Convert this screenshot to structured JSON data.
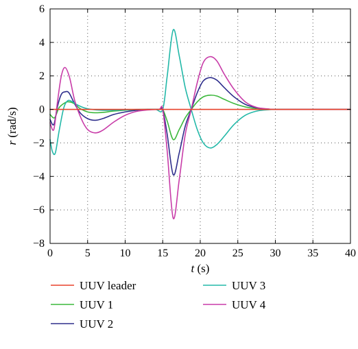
{
  "chart_data": {
    "type": "line",
    "xlabel_var": "t",
    "xlabel_unit": " (s)",
    "ylabel_var": "r",
    "ylabel_unit": " (rad/s)",
    "xlim": [
      0,
      40
    ],
    "ylim": [
      -8,
      6
    ],
    "xticks": [
      0,
      5,
      10,
      15,
      20,
      25,
      30,
      35,
      40
    ],
    "yticks": [
      -8,
      -6,
      -4,
      -2,
      0,
      2,
      4,
      6
    ],
    "xtick_labels": [
      "0",
      "5",
      "10",
      "15",
      "20",
      "25",
      "30",
      "35",
      "40"
    ],
    "ytick_labels": [
      "−8",
      "−6",
      "−4",
      "−2",
      "0",
      "2",
      "4",
      "6"
    ],
    "grid": "dotted",
    "legend_position": "below",
    "series": [
      {
        "name": "UUV leader",
        "color": "#e8412a",
        "x": [
          0,
          40
        ],
        "y": [
          0,
          0
        ]
      },
      {
        "name": "UUV 1",
        "color": "#3cb83c",
        "x": [
          0,
          0.6,
          1.2,
          2.0,
          2.5,
          3.2,
          4.0,
          5.0,
          6.0,
          7.0,
          8.5,
          10.0,
          11.5,
          13.0,
          14.5,
          15.0,
          15.6,
          16.4,
          17.2,
          18.0,
          18.8,
          19.6,
          20.4,
          21.3,
          22.2,
          23.2,
          24.5,
          26.0,
          27.5,
          29.0,
          30.0,
          33.0,
          40.0
        ],
        "y": [
          -0.3,
          -0.5,
          0.1,
          0.4,
          0.45,
          0.35,
          0.05,
          -0.15,
          -0.2,
          -0.18,
          -0.1,
          -0.05,
          -0.02,
          0.0,
          0.0,
          0.0,
          -0.7,
          -1.8,
          -1.2,
          -0.5,
          0.0,
          0.45,
          0.75,
          0.85,
          0.8,
          0.6,
          0.35,
          0.15,
          0.05,
          0.0,
          0.0,
          0.0,
          0.0
        ]
      },
      {
        "name": "UUV 2",
        "color": "#2e2e8c",
        "x": [
          0,
          0.5,
          1.0,
          1.5,
          2.0,
          2.5,
          3.2,
          4.0,
          5.0,
          6.0,
          7.0,
          8.5,
          10.0,
          11.5,
          13.0,
          14.5,
          15.0,
          15.6,
          16.4,
          17.2,
          18.0,
          18.8,
          19.6,
          20.4,
          21.3,
          22.2,
          23.2,
          24.5,
          26.0,
          27.5,
          29.0,
          30.0,
          33.0,
          40.0
        ],
        "y": [
          -0.6,
          -0.9,
          0.2,
          0.9,
          1.05,
          1.0,
          0.4,
          -0.2,
          -0.55,
          -0.65,
          -0.55,
          -0.3,
          -0.15,
          -0.05,
          0.0,
          0.0,
          0.0,
          -1.5,
          -3.9,
          -2.6,
          -1.0,
          0.0,
          1.0,
          1.7,
          1.9,
          1.75,
          1.3,
          0.75,
          0.3,
          0.1,
          0.02,
          0.0,
          0.0,
          0.0
        ]
      },
      {
        "name": "UUV 3",
        "color": "#22b8a8",
        "x": [
          0,
          0.3,
          0.7,
          1.2,
          1.8,
          2.3,
          2.8,
          3.5,
          4.5,
          5.5,
          7.0,
          8.5,
          10.0,
          12.0,
          14.0,
          15.0,
          15.6,
          16.4,
          17.2,
          18.0,
          18.8,
          19.6,
          20.4,
          21.3,
          22.2,
          23.2,
          24.5,
          26.0,
          27.5,
          29.0,
          30.0,
          33.0,
          40.0
        ],
        "y": [
          -1.8,
          -2.5,
          -2.6,
          -1.3,
          0.05,
          0.5,
          0.5,
          0.3,
          0.1,
          0.0,
          -0.05,
          -0.05,
          -0.03,
          0.0,
          0.0,
          0.0,
          2.0,
          4.75,
          3.2,
          1.3,
          0.0,
          -1.2,
          -2.0,
          -2.3,
          -2.1,
          -1.6,
          -0.9,
          -0.35,
          -0.1,
          -0.02,
          0.0,
          0.0,
          0.0
        ]
      },
      {
        "name": "UUV 4",
        "color": "#c83ca8",
        "x": [
          0,
          0.5,
          1.0,
          1.5,
          2.0,
          2.6,
          3.3,
          4.2,
          5.0,
          6.0,
          7.0,
          8.5,
          10.0,
          11.5,
          13.0,
          14.5,
          15.0,
          15.6,
          16.4,
          17.2,
          18.0,
          18.8,
          19.6,
          20.4,
          21.3,
          22.2,
          23.2,
          24.5,
          26.0,
          27.5,
          29.0,
          30.0,
          33.0,
          40.0
        ],
        "y": [
          -0.8,
          -1.2,
          0.5,
          2.0,
          2.5,
          1.9,
          0.5,
          -0.6,
          -1.2,
          -1.4,
          -1.25,
          -0.75,
          -0.35,
          -0.12,
          -0.03,
          0.0,
          0.0,
          -2.5,
          -6.5,
          -4.2,
          -1.5,
          0.0,
          1.6,
          2.8,
          3.15,
          2.9,
          2.1,
          1.2,
          0.45,
          0.12,
          0.03,
          0.0,
          0.0,
          0.0
        ]
      }
    ]
  }
}
